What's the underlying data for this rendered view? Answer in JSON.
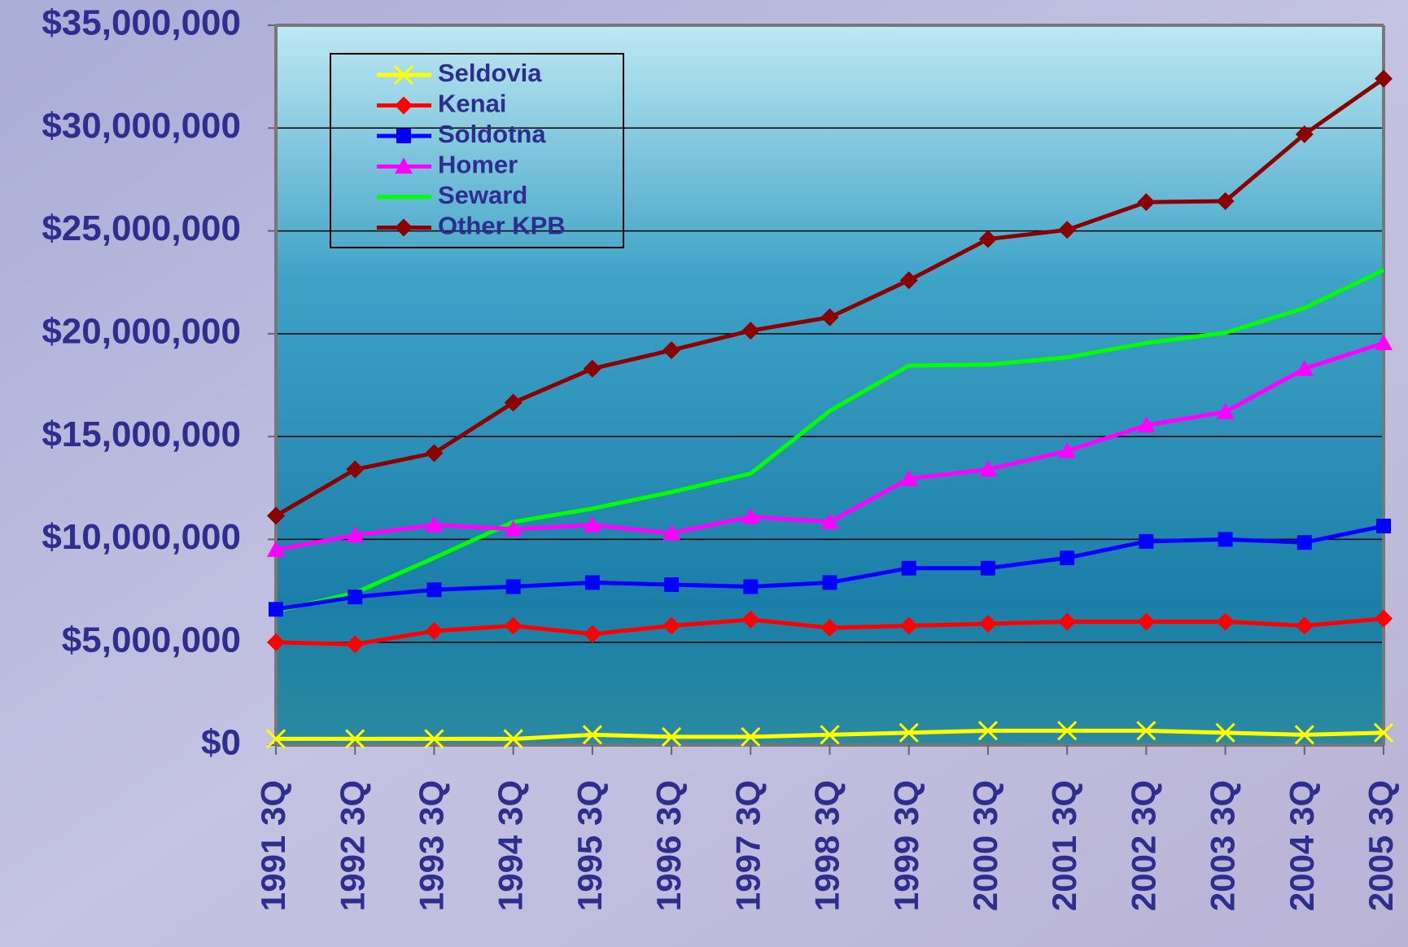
{
  "chart_data": {
    "type": "line",
    "categories": [
      "1991 3Q",
      "1992 3Q",
      "1993 3Q",
      "1994 3Q",
      "1995 3Q",
      "1996 3Q",
      "1997 3Q",
      "1998 3Q",
      "1999 3Q",
      "2000 3Q",
      "2001 3Q",
      "2002 3Q",
      "2003 3Q",
      "2004 3Q",
      "2005 3Q"
    ],
    "series": [
      {
        "name": "Seldovia",
        "color": "#ffff00",
        "marker": "x",
        "values": [
          300000,
          300000,
          300000,
          300000,
          500000,
          400000,
          400000,
          500000,
          600000,
          700000,
          700000,
          700000,
          600000,
          500000,
          600000
        ]
      },
      {
        "name": "Kenai",
        "color": "#ff0000",
        "marker": "diamond",
        "values": [
          5000000,
          4900000,
          5550000,
          5800000,
          5400000,
          5800000,
          6100000,
          5700000,
          5800000,
          5900000,
          6000000,
          6000000,
          6000000,
          5800000,
          6150000
        ]
      },
      {
        "name": "Soldotna",
        "color": "#0000ff",
        "marker": "square",
        "values": [
          6600000,
          7200000,
          7550000,
          7700000,
          7900000,
          7800000,
          7700000,
          7900000,
          8600000,
          8600000,
          9100000,
          9900000,
          10000000,
          9850000,
          10650000
        ]
      },
      {
        "name": "Homer",
        "color": "#ff00ff",
        "marker": "triangle",
        "values": [
          9500000,
          10200000,
          10700000,
          10500000,
          10700000,
          10300000,
          11100000,
          10850000,
          12950000,
          13400000,
          14300000,
          15550000,
          16200000,
          18300000,
          19550000
        ]
      },
      {
        "name": "Seward",
        "color": "#00ff00",
        "marker": "none",
        "values": [
          6500000,
          7400000,
          9100000,
          10850000,
          11500000,
          12300000,
          13200000,
          16250000,
          18450000,
          18500000,
          18850000,
          19550000,
          20050000,
          21250000,
          23100000
        ]
      },
      {
        "name": "Other KPB",
        "color": "#8b0000",
        "marker": "diamond",
        "values": [
          11150000,
          13400000,
          14200000,
          16650000,
          18300000,
          19200000,
          20150000,
          20800000,
          22600000,
          24600000,
          25050000,
          26400000,
          26450000,
          29700000,
          32400000
        ]
      }
    ],
    "ylim": [
      0,
      35000000
    ],
    "yticks": [
      {
        "value": 0,
        "label": "$0"
      },
      {
        "value": 5000000,
        "label": "$5,000,000"
      },
      {
        "value": 10000000,
        "label": "$10,000,000"
      },
      {
        "value": 15000000,
        "label": "$15,000,000"
      },
      {
        "value": 20000000,
        "label": "$20,000,000"
      },
      {
        "value": 25000000,
        "label": "$25,000,000"
      },
      {
        "value": 30000000,
        "label": "$30,000,000"
      },
      {
        "value": 35000000,
        "label": "$35,000,000"
      }
    ],
    "grid": true,
    "legend": "upper left"
  }
}
